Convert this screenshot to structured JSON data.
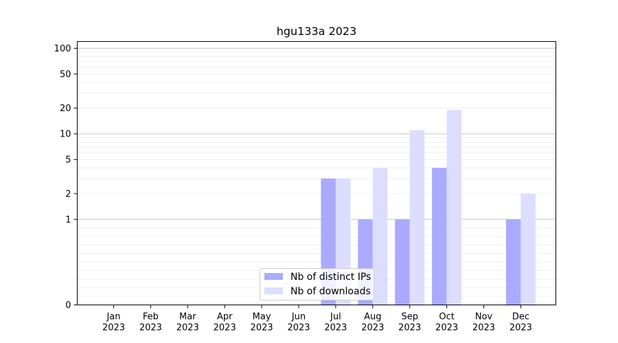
{
  "chart_data": {
    "type": "bar",
    "title": "hgu133a 2023",
    "xlabel": "",
    "ylabel": "",
    "y_scale": "symlog",
    "ylim": [
      0,
      120
    ],
    "y_ticks": [
      0,
      1,
      2,
      5,
      10,
      20,
      50,
      100
    ],
    "categories": [
      "Jan\n2023",
      "Feb\n2023",
      "Mar\n2023",
      "Apr\n2023",
      "May\n2023",
      "Jun\n2023",
      "Jul\n2023",
      "Aug\n2023",
      "Sep\n2023",
      "Oct\n2023",
      "Nov\n2023",
      "Dec\n2023"
    ],
    "series": [
      {
        "name": "Nb of distinct IPs",
        "color": "#aaaaff",
        "values": [
          0,
          0,
          0,
          0,
          0,
          0,
          3,
          1,
          1,
          4,
          0,
          1
        ]
      },
      {
        "name": "Nb of downloads",
        "color": "#ddddff",
        "values": [
          0,
          0,
          0,
          0,
          0,
          0,
          3,
          4,
          11,
          19,
          0,
          2
        ]
      }
    ],
    "grid": true,
    "legend": "bottom-center"
  }
}
